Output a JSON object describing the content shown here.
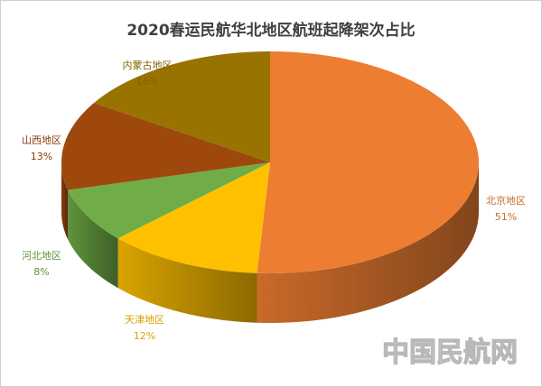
{
  "chart_data": {
    "type": "pie",
    "title": "2020春运民航华北地区航班起降架次占比",
    "categories": [
      "北京地区",
      "天津地区",
      "河北地区",
      "山西地区",
      "内蒙古地区"
    ],
    "values": [
      51,
      12,
      8,
      13,
      16
    ],
    "value_labels": [
      "51%",
      "12%",
      "8%",
      "13%",
      "16%"
    ],
    "colors": [
      "#ed7d31",
      "#ffc000",
      "#70ad47",
      "#9e480e",
      "#997300"
    ],
    "watermark": "中国民航网"
  }
}
